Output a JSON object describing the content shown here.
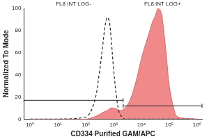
{
  "chart_data": {
    "type": "histogram",
    "x_label": "CD334 Purified GAM/APC",
    "y_label": "Normalized To Mode",
    "log": "x",
    "grid": false,
    "x": [
      1,
      10,
      100,
      200,
      300,
      400,
      500,
      600,
      700,
      800,
      1000,
      1300,
      1600,
      2000,
      2500,
      3000,
      4000,
      5000,
      7000,
      10000,
      15000,
      20000,
      25000,
      30000,
      40000,
      50000,
      60000,
      80000,
      100000,
      150000,
      200000,
      1000000
    ],
    "series": [
      {
        "type": "area",
        "color": "#f08a8a",
        "line_style": "solid",
        "values": [
          0,
          0,
          0,
          2,
          4,
          6,
          7,
          8,
          9,
          10,
          10,
          9,
          8,
          8,
          10,
          12,
          18,
          25,
          38,
          55,
          70,
          80,
          88,
          92,
          100,
          97,
          85,
          55,
          30,
          8,
          2,
          0
        ]
      },
      {
        "type": "line",
        "color": "#222222",
        "line_style": "dashed",
        "values": [
          0,
          0,
          2,
          15,
          40,
          65,
          85,
          92,
          88,
          75,
          45,
          18,
          6,
          2,
          0,
          0,
          0,
          0,
          0,
          0,
          0,
          0,
          0,
          0,
          0,
          0,
          0,
          0,
          0,
          0,
          0,
          0
        ]
      }
    ],
    "gates": [
      {
        "label": "FL8 INT LOG-",
        "x": [
          0.6,
          2200
        ],
        "y": 17
      },
      {
        "label": "FL8 INT LOG+",
        "x": [
          2200,
          1500000
        ],
        "y": 12
      }
    ],
    "xlim": [
      0.6,
      1500000
    ],
    "xticks": [
      {
        "value": 1,
        "label": "10⁰"
      },
      {
        "value": 10,
        "label": "10¹"
      },
      {
        "value": 100,
        "label": "10²"
      },
      {
        "value": 1000,
        "label": "10³"
      },
      {
        "value": 10000,
        "label": "10⁴"
      },
      {
        "value": 100000,
        "label": "10⁵"
      },
      {
        "value": 1000000,
        "label": "10⁶"
      }
    ],
    "ylim": [
      0,
      100
    ],
    "yticks": [
      0,
      20,
      40,
      60,
      80,
      100
    ]
  }
}
